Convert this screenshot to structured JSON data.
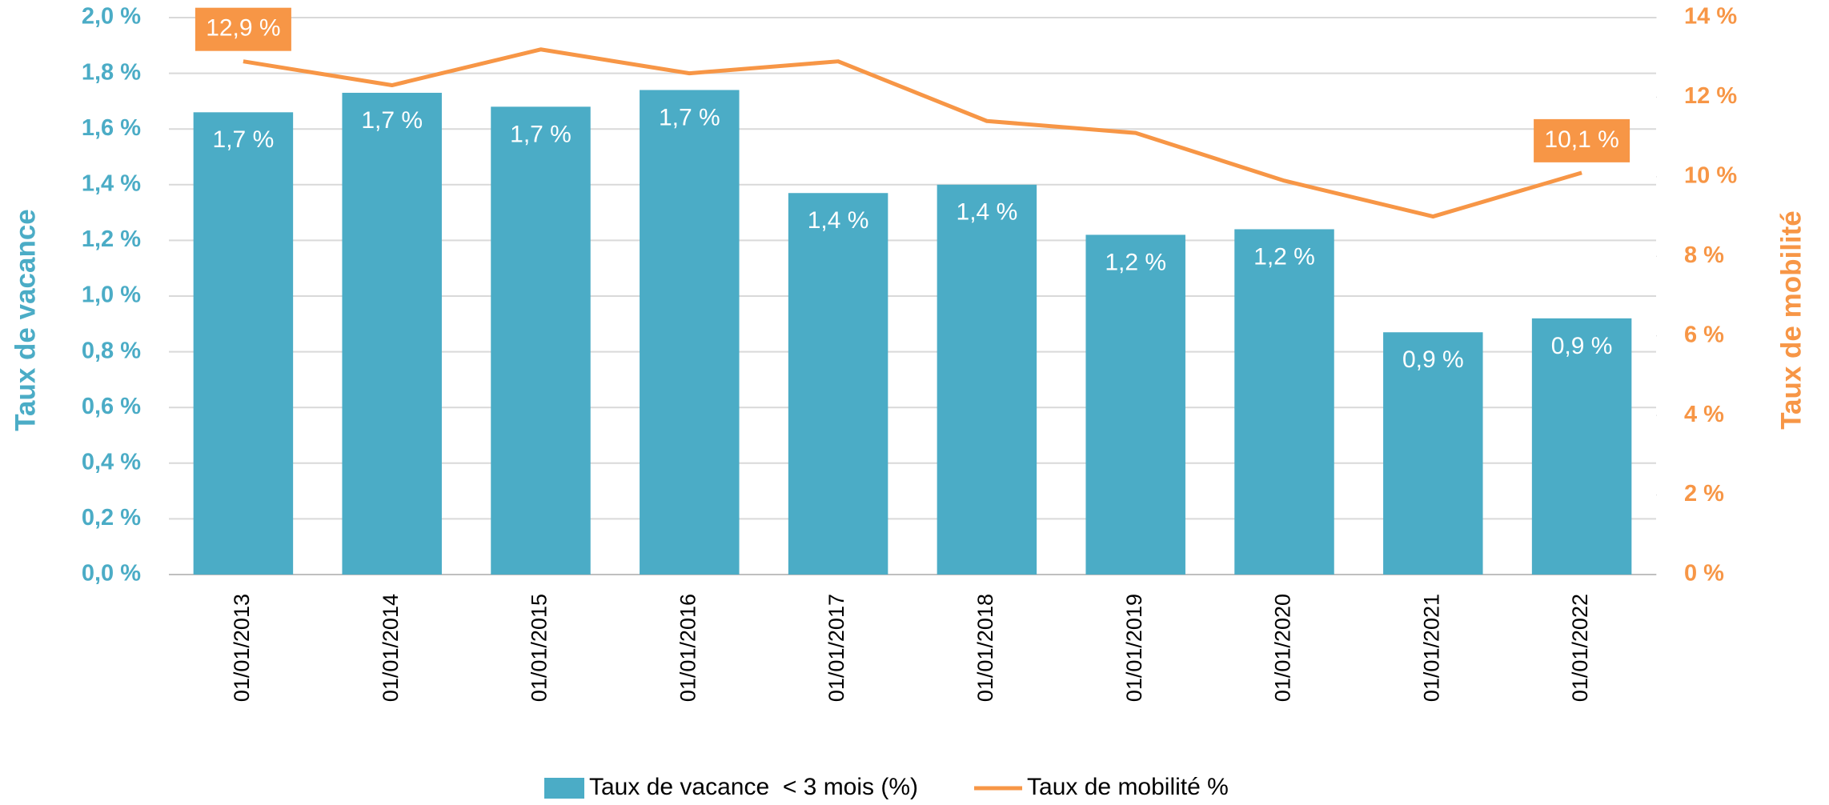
{
  "chart_data": {
    "type": "bar-line",
    "categories": [
      "01/01/2013",
      "01/01/2014",
      "01/01/2015",
      "01/01/2016",
      "01/01/2017",
      "01/01/2018",
      "01/01/2019",
      "01/01/2020",
      "01/01/2021",
      "01/01/2022"
    ],
    "series": [
      {
        "name": "Taux de vacance  < 3 mois (%)",
        "type": "bar",
        "color": "#4bacc6",
        "values": [
          1.66,
          1.73,
          1.68,
          1.74,
          1.37,
          1.4,
          1.22,
          1.24,
          0.87,
          0.92
        ],
        "value_labels": [
          "1,7 %",
          "1,7 %",
          "1,7 %",
          "1,7 %",
          "1,4 %",
          "1,4 %",
          "1,2 %",
          "1,2 %",
          "0,9 %",
          "0,9 %"
        ]
      },
      {
        "name": "Taux de mobilité %",
        "type": "line",
        "axis": "y2",
        "color": "#f79646",
        "values": [
          12.9,
          12.3,
          13.2,
          12.6,
          12.9,
          11.4,
          11.1,
          9.9,
          9.0,
          10.1
        ],
        "value_labels": [
          "12,9 %",
          null,
          null,
          null,
          null,
          null,
          null,
          null,
          null,
          "10,1 %"
        ]
      }
    ],
    "ylabel": "Taux de vacance",
    "y2label": "Taux de mobilité",
    "ylim": [
      0,
      2.0
    ],
    "yticks": [
      {
        "value": 0,
        "label": "0,0 %"
      },
      {
        "value": 0.2,
        "label": "0,2 %"
      },
      {
        "value": 0.4,
        "label": "0,4 %"
      },
      {
        "value": 0.6,
        "label": "0,6 %"
      },
      {
        "value": 0.8,
        "label": "0,8 %"
      },
      {
        "value": 1.0,
        "label": "1,0 %"
      },
      {
        "value": 1.2,
        "label": "1,2 %"
      },
      {
        "value": 1.4,
        "label": "1,4 %"
      },
      {
        "value": 1.6,
        "label": "1,6 %"
      },
      {
        "value": 1.8,
        "label": "1,8 %"
      },
      {
        "value": 2.0,
        "label": "2,0 %"
      }
    ],
    "y2lim": [
      0,
      14
    ],
    "y2ticks": [
      {
        "value": 0,
        "label": "0 %"
      },
      {
        "value": 2,
        "label": "2 %"
      },
      {
        "value": 4,
        "label": "4 %"
      },
      {
        "value": 6,
        "label": "6 %"
      },
      {
        "value": 8,
        "label": "8 %"
      },
      {
        "value": 10,
        "label": "10 %"
      },
      {
        "value": 12,
        "label": "12 %"
      },
      {
        "value": 14,
        "label": "14 %"
      }
    ],
    "grid": true,
    "legend": "bottom"
  }
}
